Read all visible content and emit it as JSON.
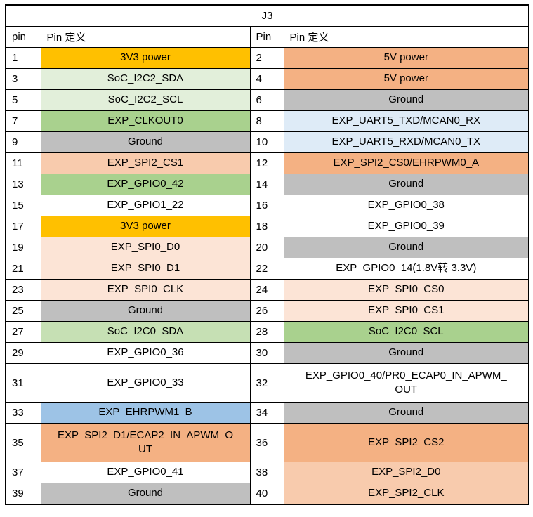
{
  "table": {
    "title": "J3",
    "headers": [
      "pin",
      "Pin 定义",
      "Pin",
      "Pin 定义"
    ],
    "rows": [
      {
        "left_pin": "1",
        "left_def": "3V3 power",
        "left_bg": "#FFC000",
        "right_pin": "2",
        "right_def": "5V power",
        "right_bg": "#F4B183"
      },
      {
        "left_pin": "3",
        "left_def": "SoC_I2C2_SDA",
        "left_bg": "#E2EFDA",
        "right_pin": "4",
        "right_def": "5V power",
        "right_bg": "#F4B183"
      },
      {
        "left_pin": "5",
        "left_def": "SoC_I2C2_SCL",
        "left_bg": "#E2EFDA",
        "right_pin": "6",
        "right_def": "Ground",
        "right_bg": "#BFBFBF"
      },
      {
        "left_pin": "7",
        "left_def": "EXP_CLKOUT0",
        "left_bg": "#A9D18E",
        "right_pin": "8",
        "right_def": "EXP_UART5_TXD/MCAN0_RX",
        "right_bg": "#DEEBF7"
      },
      {
        "left_pin": "9",
        "left_def": "Ground",
        "left_bg": "#BFBFBF",
        "right_pin": "10",
        "right_def": "EXP_UART5_RXD/MCAN0_TX",
        "right_bg": "#DEEBF7"
      },
      {
        "left_pin": "11",
        "left_def": "EXP_SPI2_CS1",
        "left_bg": "#F8CBAD",
        "right_pin": "12",
        "right_def": "EXP_SPI2_CS0/EHRPWM0_A",
        "right_bg": "#F4B183"
      },
      {
        "left_pin": "13",
        "left_def": "EXP_GPIO0_42",
        "left_bg": "#A9D18E",
        "right_pin": "14",
        "right_def": "Ground",
        "right_bg": "#BFBFBF"
      },
      {
        "left_pin": "15",
        "left_def": "EXP_GPIO1_22",
        "left_bg": "#FFFFFF",
        "right_pin": "16",
        "right_def": "EXP_GPIO0_38",
        "right_bg": "#FFFFFF"
      },
      {
        "left_pin": "17",
        "left_def": "3V3 power",
        "left_bg": "#FFC000",
        "right_pin": "18",
        "right_def": "EXP_GPIO0_39",
        "right_bg": "#FFFFFF"
      },
      {
        "left_pin": "19",
        "left_def": "EXP_SPI0_D0",
        "left_bg": "#FCE4D6",
        "right_pin": "20",
        "right_def": "Ground",
        "right_bg": "#BFBFBF"
      },
      {
        "left_pin": "21",
        "left_def": "EXP_SPI0_D1",
        "left_bg": "#FCE4D6",
        "right_pin": "22",
        "right_def": "EXP_GPIO0_14(1.8V转 3.3V)",
        "right_bg": "#FFFFFF"
      },
      {
        "left_pin": "23",
        "left_def": "EXP_SPI0_CLK",
        "left_bg": "#FCE4D6",
        "right_pin": "24",
        "right_def": "EXP_SPI0_CS0",
        "right_bg": "#FCE4D6"
      },
      {
        "left_pin": "25",
        "left_def": "Ground",
        "left_bg": "#BFBFBF",
        "right_pin": "26",
        "right_def": "EXP_SPI0_CS1",
        "right_bg": "#FCE4D6"
      },
      {
        "left_pin": "27",
        "left_def": "SoC_I2C0_SDA",
        "left_bg": "#C6E0B4",
        "right_pin": "28",
        "right_def": "SoC_I2C0_SCL",
        "right_bg": "#A9D18E"
      },
      {
        "left_pin": "29",
        "left_def": "EXP_GPIO0_36",
        "left_bg": "#FFFFFF",
        "right_pin": "30",
        "right_def": "Ground",
        "right_bg": "#BFBFBF"
      },
      {
        "left_pin": "31",
        "left_def": "EXP_GPIO0_33",
        "left_bg": "#FFFFFF",
        "right_pin": "32",
        "right_def": "EXP_GPIO0_40/PR0_ECAP0_IN_APWM_OUT",
        "right_bg": "#FFFFFF"
      },
      {
        "left_pin": "33",
        "left_def": "EXP_EHRPWM1_B",
        "left_bg": "#9DC3E6",
        "right_pin": "34",
        "right_def": "Ground",
        "right_bg": "#BFBFBF"
      },
      {
        "left_pin": "35",
        "left_def": "EXP_SPI2_D1/ECAP2_IN_APWM_OUT",
        "left_bg": "#F4B183",
        "right_pin": "36",
        "right_def": "EXP_SPI2_CS2",
        "right_bg": "#F4B183"
      },
      {
        "left_pin": "37",
        "left_def": "EXP_GPIO0_41",
        "left_bg": "#FFFFFF",
        "right_pin": "38",
        "right_def": "EXP_SPI2_D0",
        "right_bg": "#F8CBAD"
      },
      {
        "left_pin": "39",
        "left_def": "Ground",
        "left_bg": "#BFBFBF",
        "right_pin": "40",
        "right_def": "EXP_SPI2_CLK",
        "right_bg": "#F8CBAD"
      }
    ]
  }
}
